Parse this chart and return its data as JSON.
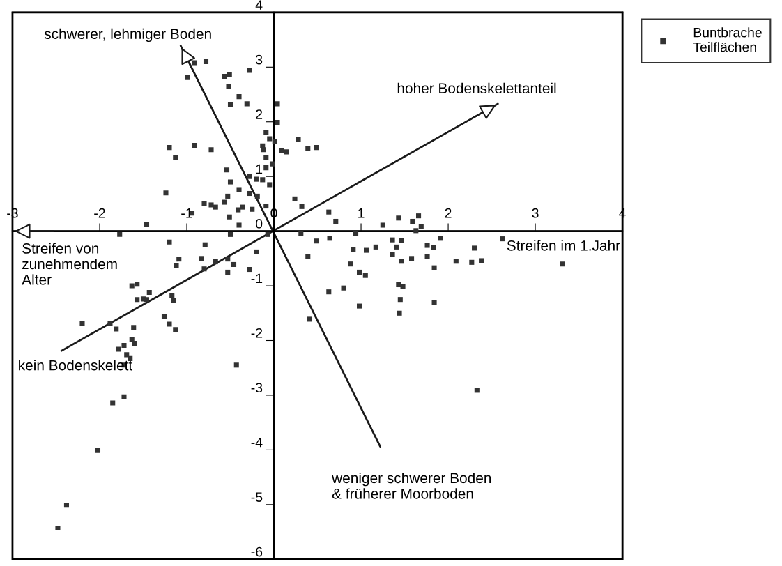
{
  "chart_data": {
    "type": "scatter",
    "xlim": [
      -3,
      4
    ],
    "ylim": [
      -6,
      4
    ],
    "xticks": [
      -3,
      -2,
      -1,
      0,
      1,
      2,
      3,
      4
    ],
    "yticks": [
      -6,
      -5,
      -4,
      -3,
      -2,
      -1,
      0,
      1,
      2,
      3,
      4
    ],
    "grid": false,
    "legend": "top right",
    "series": [
      {
        "name": "Buntbrache\nTeilflächen",
        "color": "#333333",
        "marker": "square",
        "x": [
          -0.91,
          -0.78,
          -0.99,
          -0.57,
          -0.51,
          -0.52,
          -0.4,
          -0.5,
          -0.31,
          -0.28,
          0.04,
          0.04,
          -0.09,
          -0.05,
          0.01,
          -0.13,
          -0.12,
          -0.09,
          -0.02,
          -0.09,
          0.09,
          0.14,
          0.28,
          0.39,
          0.49,
          -1.2,
          -1.13,
          -0.91,
          -0.72,
          -0.54,
          -0.5,
          -0.4,
          -0.28,
          -0.2,
          -0.13,
          -0.05,
          -0.28,
          -0.19,
          -1.24,
          -0.8,
          -0.72,
          -0.67,
          -0.57,
          -0.53,
          -0.41,
          -0.36,
          -0.25,
          -0.09,
          -0.94,
          -0.51,
          -1.46,
          -0.4,
          0.24,
          -1.77,
          -0.5,
          0.32,
          0.63,
          0.71,
          -0.07,
          0.31,
          0.49,
          0.64,
          0.39,
          0.94,
          1.25,
          1.43,
          1.59,
          1.66,
          1.69,
          1.63,
          1.91,
          0.91,
          1.06,
          1.17,
          1.36,
          1.46,
          1.41,
          1.36,
          1.46,
          1.58,
          1.76,
          1.83,
          1.76,
          1.84,
          2.09,
          2.27,
          2.38,
          0.88,
          0.98,
          1.05,
          0.63,
          0.8,
          1.43,
          1.48,
          1.45,
          1.84,
          0.98,
          1.44,
          0.41,
          2.62,
          2.3,
          3.31,
          2.33,
          -1.2,
          -0.79,
          -0.2,
          -1.09,
          -1.12,
          -0.83,
          -0.67,
          -0.53,
          -0.46,
          -0.8,
          -0.53,
          -0.28,
          -1.63,
          -1.57,
          -1.43,
          -1.57,
          -1.5,
          -1.46,
          -1.17,
          -1.15,
          -1.26,
          -1.2,
          -1.13,
          -2.2,
          -1.88,
          -1.81,
          -1.61,
          -1.63,
          -1.6,
          -1.72,
          -1.78,
          -1.69,
          -1.65,
          -1.72,
          -0.43,
          -1.72,
          -1.85,
          -2.02,
          -2.38,
          -2.48
        ],
        "values": [
          3.08,
          3.1,
          2.81,
          2.83,
          2.86,
          2.64,
          2.46,
          2.31,
          2.33,
          2.94,
          2.33,
          1.99,
          1.81,
          1.69,
          1.64,
          1.56,
          1.49,
          1.34,
          1.23,
          1.16,
          1.47,
          1.45,
          1.68,
          1.51,
          1.53,
          1.53,
          1.35,
          1.57,
          1.49,
          1.12,
          0.9,
          0.76,
          1.0,
          0.95,
          0.94,
          0.85,
          0.69,
          0.64,
          0.7,
          0.51,
          0.48,
          0.44,
          0.53,
          0.64,
          0.39,
          0.44,
          0.4,
          0.46,
          0.33,
          0.26,
          0.13,
          0.11,
          0.59,
          -0.06,
          -0.06,
          0.45,
          0.35,
          0.18,
          -0.06,
          -0.04,
          -0.18,
          -0.13,
          -0.46,
          -0.04,
          0.11,
          0.24,
          0.18,
          0.28,
          0.09,
          0.01,
          -0.13,
          -0.34,
          -0.35,
          -0.29,
          -0.16,
          -0.17,
          -0.29,
          -0.42,
          -0.55,
          -0.5,
          -0.26,
          -0.3,
          -0.47,
          -0.67,
          -0.55,
          -0.57,
          -0.54,
          -0.6,
          -0.75,
          -0.81,
          -1.11,
          -1.04,
          -0.98,
          -1.01,
          -1.25,
          -1.3,
          -1.37,
          -1.5,
          -1.61,
          -0.14,
          -0.31,
          -0.6,
          -2.91,
          -0.2,
          -0.25,
          -0.38,
          -0.51,
          -0.63,
          -0.5,
          -0.56,
          -0.51,
          -0.61,
          -0.69,
          -0.75,
          -0.7,
          -1.0,
          -0.97,
          -1.12,
          -1.25,
          -1.24,
          -1.25,
          -1.18,
          -1.26,
          -1.56,
          -1.7,
          -1.8,
          -1.69,
          -1.69,
          -1.79,
          -1.76,
          -1.98,
          -2.05,
          -2.09,
          -2.16,
          -2.26,
          -2.33,
          -2.45,
          -2.45,
          -3.03,
          -3.14,
          -4.01,
          -5.01,
          -5.43
        ]
      },
      {
        "type": "line",
        "color": "#1a1a1a",
        "x": [
          1.22,
          -1.07
        ],
        "values": [
          -3.94,
          3.39
        ]
      },
      {
        "type": "line",
        "color": "#1a1a1a",
        "x": [
          -2.44,
          2.57
        ],
        "values": [
          -2.19,
          2.33
        ]
      },
      {
        "type": "line",
        "color": "#1a1a1a",
        "x": [
          4,
          -3
        ],
        "values": [
          0,
          0
        ]
      }
    ],
    "annotations": [
      {
        "text": "schwerer, lehmiger Boden",
        "x": -1.07,
        "y": 3.39
      },
      {
        "text": "hoher Bodenskelettanteil",
        "x": 2.57,
        "y": 2.33
      },
      {
        "text": "Streifen von\nzunehmendem\nAlter",
        "x": -3,
        "y": 0
      },
      {
        "text": "kein Bodenskelett",
        "x": -2.44,
        "y": -2.19
      },
      {
        "text": "Streifen im 1.Jahr",
        "x": 4,
        "y": 0
      },
      {
        "text": "weniger schwerer Boden\n& früherer Moorboden",
        "x": 1.22,
        "y": -3.94
      }
    ]
  }
}
